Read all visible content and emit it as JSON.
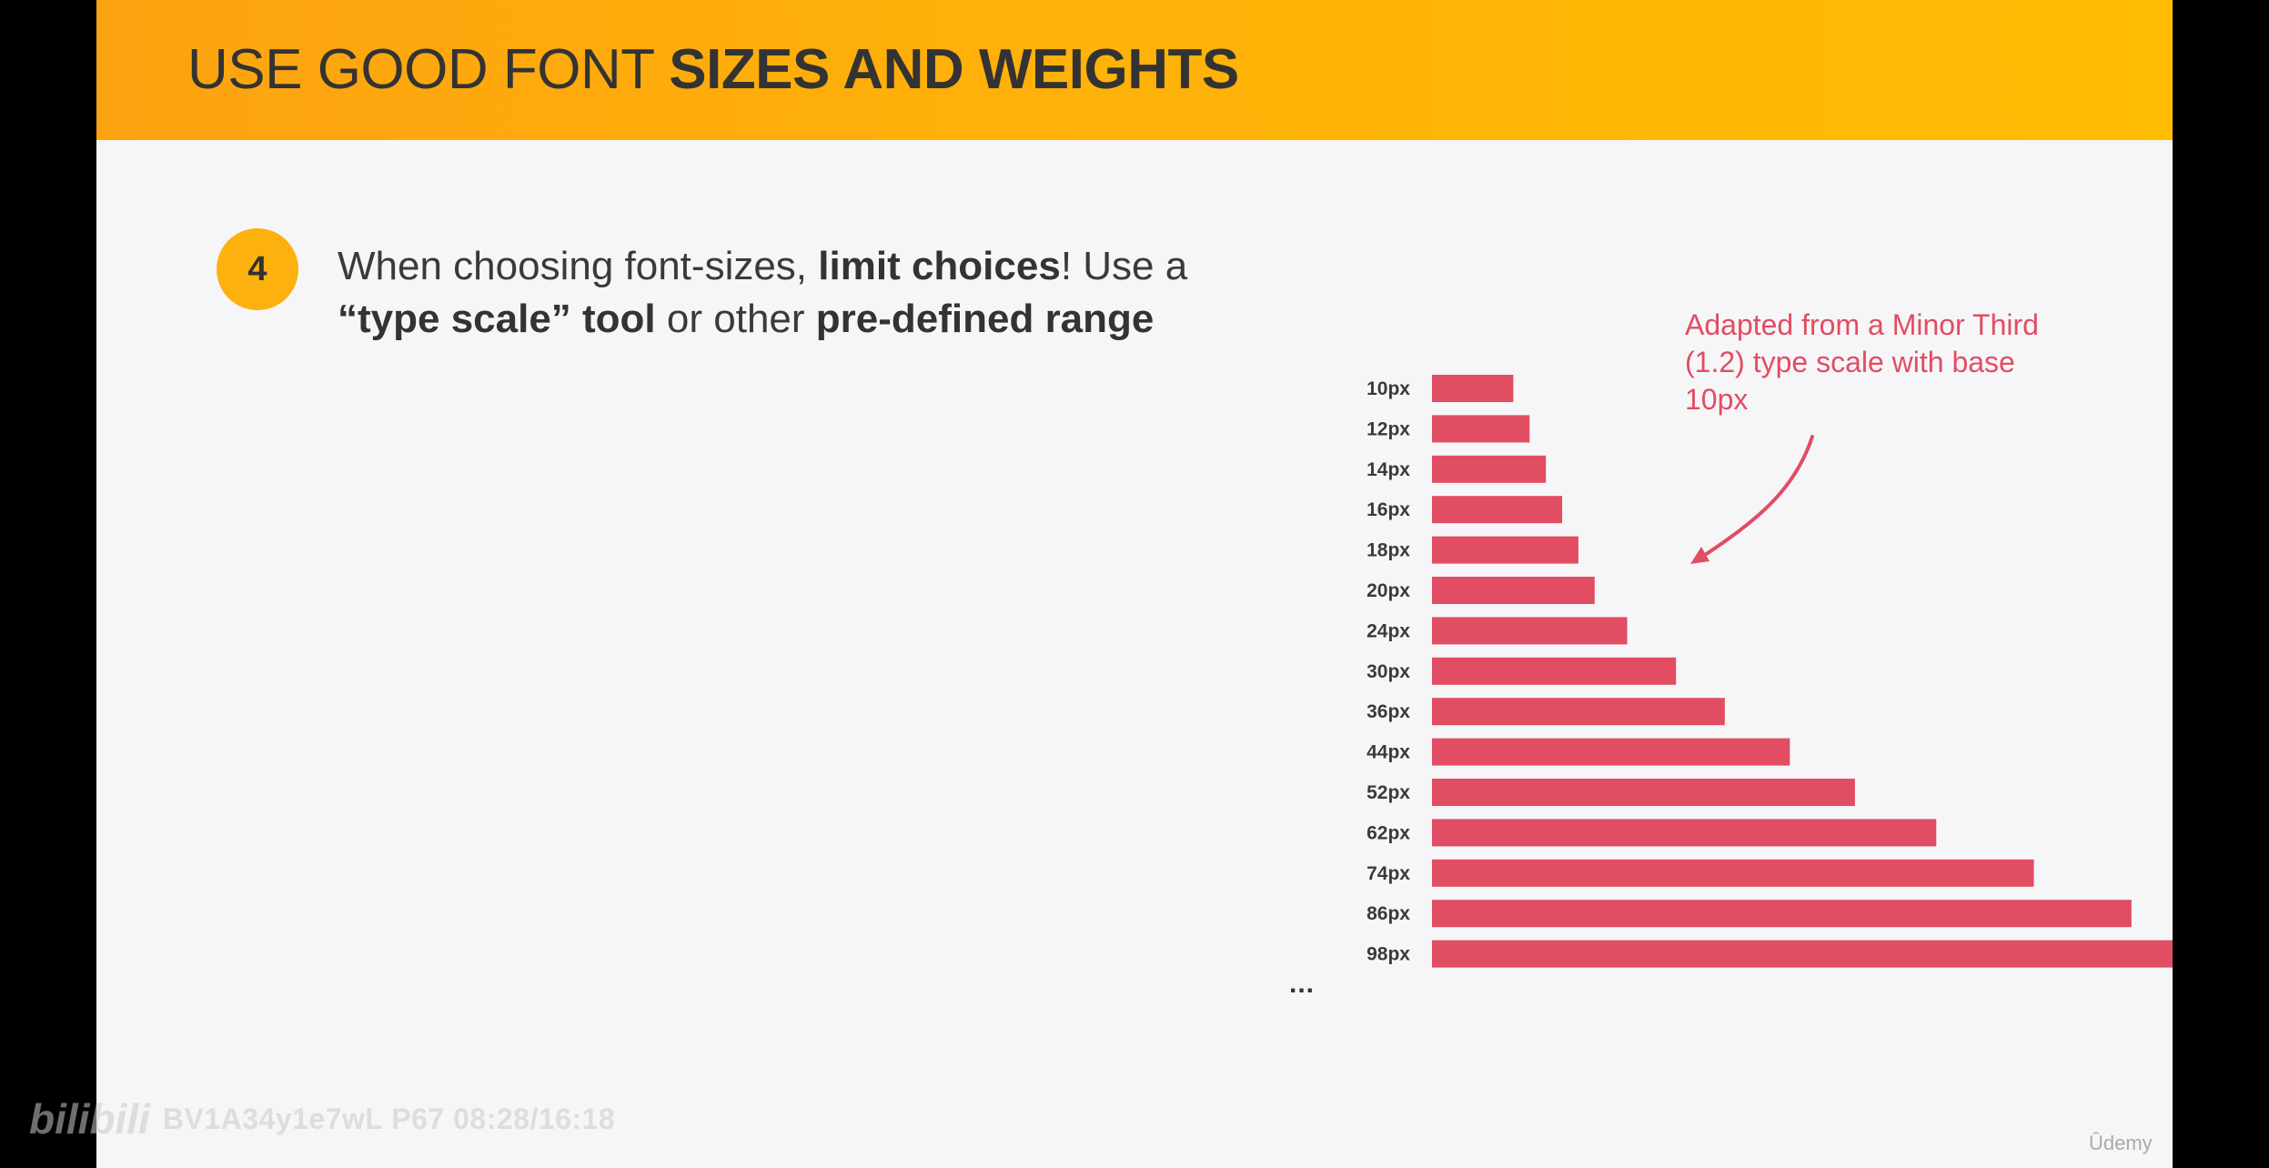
{
  "header": {
    "title_regular": "USE GOOD FONT ",
    "title_bold": "SIZES AND WEIGHTS"
  },
  "point": {
    "number": "4",
    "line1_a": "When choosing font-sizes, ",
    "line1_b": "limit choices",
    "line1_c": "! Use a",
    "line2_a": "“type scale” tool",
    "line2_b": " or other ",
    "line2_c": "pre-defined range"
  },
  "note": {
    "text": "Adapted from a Minor Third (1.2) type scale with base 10px"
  },
  "chart_data": {
    "type": "bar",
    "orientation": "horizontal",
    "categories": [
      "10px",
      "12px",
      "14px",
      "16px",
      "18px",
      "20px",
      "24px",
      "30px",
      "36px",
      "44px",
      "52px",
      "62px",
      "74px",
      "86px",
      "98px"
    ],
    "values": [
      10,
      12,
      14,
      16,
      18,
      20,
      24,
      30,
      36,
      44,
      52,
      62,
      74,
      86,
      98
    ],
    "trailing_label": "...",
    "color": "#e14d62",
    "grid": false
  },
  "watermark": {
    "logo": "bilibili",
    "text": "BV1A34y1e7wL P67 08:28/16:18"
  },
  "corner": {
    "text": "Ûdemy"
  },
  "colors": {
    "header": "#ffb109",
    "badge": "#fcb10f",
    "accent": "#e14d62",
    "slide_bg": "#f6f6f8"
  }
}
